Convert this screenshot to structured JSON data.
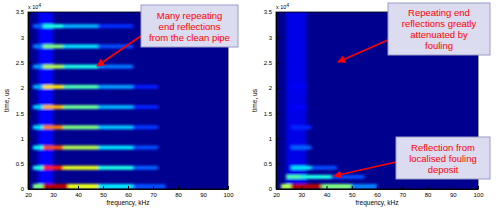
{
  "chart_data": [
    {
      "type": "heatmap",
      "xlabel": "frequency, kHz",
      "ylabel": "time, us",
      "y_offset_text": "x 10",
      "y_offset_exponent": 4,
      "xlim": [
        20,
        100
      ],
      "xticks": [
        20,
        30,
        40,
        50,
        60,
        70,
        80,
        90,
        100
      ],
      "ylim": [
        0,
        3.5
      ],
      "yticks": [
        0,
        0.5,
        1,
        1.5,
        2,
        2.5,
        3,
        3.5
      ],
      "color_range": [
        0,
        1
      ],
      "colors": [
        "#00008f",
        "#0000ff",
        "#0080ff",
        "#00ffff",
        "#80ff80",
        "#ffff00",
        "#ff8000",
        "#ff0000",
        "#800000"
      ],
      "cells": [
        [
          24,
          30,
          0,
          3.5,
          0.12
        ],
        [
          22,
          26,
          0,
          0.1,
          0.5
        ],
        [
          26,
          36,
          0,
          0.1,
          0.95
        ],
        [
          36,
          48,
          0,
          0.1,
          0.6
        ],
        [
          48,
          62,
          0,
          0.1,
          0.35
        ],
        [
          62,
          75,
          0,
          0.1,
          0.2
        ],
        [
          22,
          26,
          0.38,
          0.46,
          0.4
        ],
        [
          26,
          34,
          0.38,
          0.46,
          0.85
        ],
        [
          34,
          48,
          0.38,
          0.46,
          0.6
        ],
        [
          48,
          62,
          0.38,
          0.46,
          0.4
        ],
        [
          62,
          72,
          0.38,
          0.46,
          0.22
        ],
        [
          22,
          26,
          0.78,
          0.86,
          0.38
        ],
        [
          26,
          34,
          0.78,
          0.86,
          0.8
        ],
        [
          34,
          48,
          0.78,
          0.86,
          0.55
        ],
        [
          48,
          62,
          0.78,
          0.86,
          0.35
        ],
        [
          62,
          72,
          0.78,
          0.86,
          0.2
        ],
        [
          22,
          26,
          1.18,
          1.26,
          0.35
        ],
        [
          26,
          34,
          1.18,
          1.26,
          0.75
        ],
        [
          34,
          48,
          1.18,
          1.26,
          0.5
        ],
        [
          48,
          62,
          1.18,
          1.26,
          0.32
        ],
        [
          62,
          72,
          1.18,
          1.26,
          0.18
        ],
        [
          22,
          26,
          1.58,
          1.66,
          0.33
        ],
        [
          26,
          34,
          1.58,
          1.66,
          0.7
        ],
        [
          34,
          48,
          1.58,
          1.66,
          0.48
        ],
        [
          48,
          62,
          1.58,
          1.66,
          0.3
        ],
        [
          62,
          72,
          1.58,
          1.66,
          0.16
        ],
        [
          22,
          26,
          1.98,
          2.06,
          0.3
        ],
        [
          26,
          34,
          1.98,
          2.06,
          0.65
        ],
        [
          34,
          48,
          1.98,
          2.06,
          0.45
        ],
        [
          48,
          62,
          1.98,
          2.06,
          0.28
        ],
        [
          62,
          72,
          1.98,
          2.06,
          0.15
        ],
        [
          22,
          26,
          2.38,
          2.46,
          0.28
        ],
        [
          26,
          34,
          2.38,
          2.46,
          0.55
        ],
        [
          34,
          48,
          2.38,
          2.46,
          0.4
        ],
        [
          48,
          62,
          2.38,
          2.46,
          0.24
        ],
        [
          22,
          26,
          2.78,
          2.86,
          0.25
        ],
        [
          26,
          34,
          2.78,
          2.86,
          0.5
        ],
        [
          34,
          48,
          2.78,
          2.86,
          0.35
        ],
        [
          48,
          62,
          2.78,
          2.86,
          0.2
        ],
        [
          22,
          26,
          3.18,
          3.26,
          0.22
        ],
        [
          26,
          34,
          3.18,
          3.26,
          0.4
        ],
        [
          34,
          48,
          3.18,
          3.26,
          0.3
        ],
        [
          48,
          62,
          3.18,
          3.26,
          0.17
        ]
      ],
      "annotations": [
        {
          "lines": [
            "Many repeating",
            "end reflections",
            "from the clean pipe"
          ]
        }
      ]
    },
    {
      "type": "heatmap",
      "xlabel": "frequency, kHz",
      "ylabel": "time, us",
      "y_offset_text": "x 10",
      "y_offset_exponent": 4,
      "xlim": [
        20,
        100
      ],
      "xticks": [
        20,
        30,
        40,
        50,
        60,
        70,
        80,
        90,
        100
      ],
      "ylim": [
        0,
        3.5
      ],
      "yticks": [
        0,
        0.5,
        1,
        1.5,
        2,
        2.5,
        3,
        3.5
      ],
      "color_range": [
        0,
        1
      ],
      "colors": [
        "#00008f",
        "#0000ff",
        "#0080ff",
        "#00ffff",
        "#80ff80",
        "#ffff00",
        "#ff8000",
        "#ff0000",
        "#800000"
      ],
      "cells": [
        [
          24,
          32,
          0,
          3.5,
          0.1
        ],
        [
          22,
          26,
          0,
          0.1,
          0.55
        ],
        [
          26,
          38,
          0,
          0.1,
          0.95
        ],
        [
          38,
          50,
          0,
          0.1,
          0.5
        ],
        [
          50,
          60,
          0,
          0.1,
          0.25
        ],
        [
          24,
          30,
          0.2,
          0.28,
          0.45
        ],
        [
          30,
          42,
          0.2,
          0.28,
          0.4
        ],
        [
          42,
          55,
          0.2,
          0.28,
          0.2
        ],
        [
          26,
          34,
          0.38,
          0.46,
          0.35
        ],
        [
          34,
          44,
          0.38,
          0.46,
          0.2
        ],
        [
          26,
          34,
          0.78,
          0.86,
          0.22
        ],
        [
          26,
          34,
          1.18,
          1.26,
          0.16
        ],
        [
          26,
          32,
          1.58,
          1.66,
          0.13
        ],
        [
          26,
          32,
          1.98,
          2.06,
          0.12
        ]
      ],
      "annotations": [
        {
          "lines": [
            "Repeating end",
            "reflections greatly",
            "attenuated by",
            "fouling"
          ]
        },
        {
          "lines": [
            "Reflection from",
            "localised fouling",
            "deposit"
          ]
        }
      ]
    }
  ]
}
